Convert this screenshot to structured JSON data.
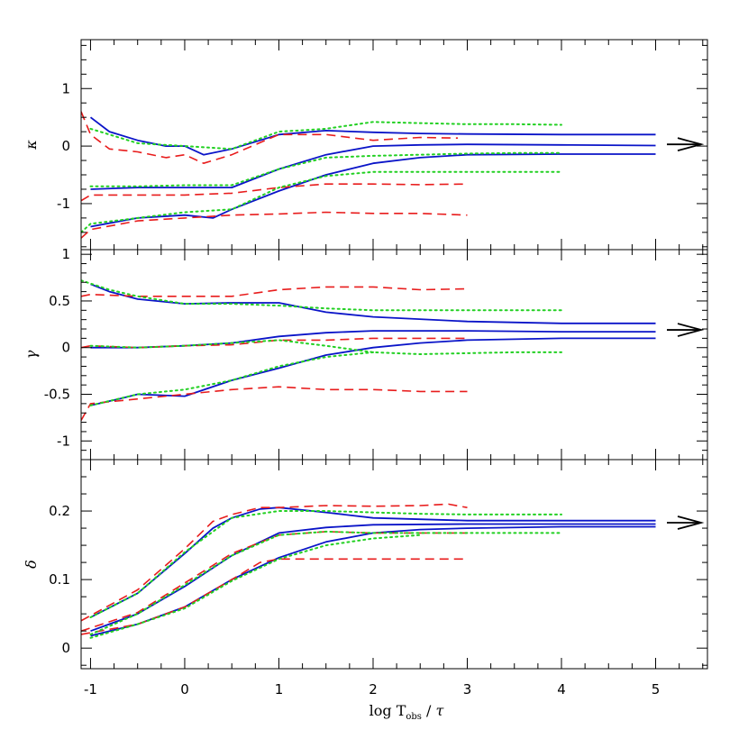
{
  "chart_data": {
    "type": "line",
    "xlabel": "log T_obs / τ",
    "xlabel_parts": {
      "main": "log T",
      "sub": "obs",
      "div": " / ",
      "tau": "τ"
    },
    "xlim": [
      -1.1,
      5.55
    ],
    "xticks": [
      -1,
      0,
      1,
      2,
      3,
      4,
      5
    ],
    "xtick_labels": [
      "-1",
      "0",
      "1",
      "2",
      "3",
      "4",
      "5"
    ],
    "line_colors": {
      "solid": "#0a14c8",
      "dashed": "#e81c1c",
      "dotted": "#22d022",
      "arrow": "#000000",
      "axes": "#000000"
    },
    "panels": [
      {
        "ylabel": "κ",
        "ylim": [
          -1.8,
          1.85
        ],
        "yticks": [
          -1,
          0,
          1
        ],
        "ytick_labels": [
          "-1",
          "0",
          "1"
        ],
        "minor_step": 0.25,
        "arrow_y": 0.03,
        "series": [
          {
            "style": "solid",
            "x": [
              -1.0,
              -0.8,
              -0.5,
              -0.2,
              0.0,
              0.2,
              0.5,
              1.0,
              1.5,
              2.0,
              2.5,
              3.0,
              4.0,
              5.0
            ],
            "y": [
              0.5,
              0.25,
              0.1,
              0.0,
              0.0,
              -0.15,
              -0.05,
              0.2,
              0.27,
              0.24,
              0.22,
              0.21,
              0.2,
              0.2
            ]
          },
          {
            "style": "solid",
            "x": [
              -1.0,
              -0.5,
              0.0,
              0.5,
              1.0,
              1.5,
              2.0,
              2.5,
              3.0,
              4.0,
              5.0
            ],
            "y": [
              -0.75,
              -0.72,
              -0.72,
              -0.72,
              -0.4,
              -0.15,
              0.0,
              0.02,
              0.03,
              0.02,
              0.01
            ]
          },
          {
            "style": "solid",
            "x": [
              -1.0,
              -0.5,
              0.0,
              0.3,
              0.5,
              1.0,
              1.5,
              2.0,
              2.5,
              3.0,
              4.0,
              5.0
            ],
            "y": [
              -1.4,
              -1.25,
              -1.2,
              -1.25,
              -1.1,
              -0.78,
              -0.5,
              -0.3,
              -0.2,
              -0.15,
              -0.14,
              -0.14
            ]
          },
          {
            "style": "dashed",
            "x": [
              -1.1,
              -1.0,
              -0.8,
              -0.5,
              -0.2,
              0.0,
              0.2,
              0.5,
              1.0,
              1.5,
              2.0,
              2.5,
              2.9
            ],
            "y": [
              0.6,
              0.2,
              -0.05,
              -0.1,
              -0.2,
              -0.15,
              -0.3,
              -0.15,
              0.2,
              0.2,
              0.1,
              0.15,
              0.14
            ]
          },
          {
            "style": "dashed",
            "x": [
              -1.1,
              -1.0,
              -0.5,
              0.0,
              0.5,
              1.0,
              1.5,
              2.0,
              2.5,
              3.0
            ],
            "y": [
              -0.95,
              -0.85,
              -0.85,
              -0.85,
              -0.82,
              -0.72,
              -0.66,
              -0.66,
              -0.67,
              -0.66
            ]
          },
          {
            "style": "dashed",
            "x": [
              -1.1,
              -1.0,
              -0.5,
              0.0,
              0.5,
              1.0,
              1.5,
              2.0,
              2.5,
              3.0
            ],
            "y": [
              -1.6,
              -1.45,
              -1.3,
              -1.25,
              -1.2,
              -1.18,
              -1.15,
              -1.17,
              -1.17,
              -1.2
            ]
          },
          {
            "style": "dotted",
            "x": [
              -1.0,
              -0.5,
              0.0,
              0.5,
              1.0,
              1.5,
              2.0,
              2.5,
              3.0,
              3.5,
              4.0
            ],
            "y": [
              0.3,
              0.05,
              0.0,
              -0.05,
              0.25,
              0.3,
              0.42,
              0.4,
              0.38,
              0.38,
              0.37
            ]
          },
          {
            "style": "dotted",
            "x": [
              -1.0,
              -0.5,
              0.0,
              0.5,
              1.0,
              1.5,
              2.0,
              2.5,
              3.0,
              3.5,
              4.0
            ],
            "y": [
              -0.7,
              -0.7,
              -0.68,
              -0.68,
              -0.4,
              -0.2,
              -0.17,
              -0.15,
              -0.13,
              -0.12,
              -0.12
            ]
          },
          {
            "style": "dotted",
            "x": [
              -1.1,
              -1.0,
              -0.5,
              0.0,
              0.5,
              1.0,
              1.5,
              2.0,
              2.5,
              3.0,
              3.5,
              4.0
            ],
            "y": [
              -1.5,
              -1.35,
              -1.25,
              -1.15,
              -1.1,
              -0.72,
              -0.52,
              -0.45,
              -0.45,
              -0.45,
              -0.45,
              -0.45
            ]
          }
        ]
      },
      {
        "ylabel": "γ",
        "ylim": [
          -1.2,
          1.05
        ],
        "yticks": [
          -1,
          -0.5,
          0,
          0.5,
          1
        ],
        "ytick_labels": [
          "-1",
          "-0.5",
          "0",
          "0.5",
          "1"
        ],
        "minor_step": 0.1,
        "arrow_y": 0.19,
        "series": [
          {
            "style": "solid",
            "x": [
              -1.0,
              -0.8,
              -0.5,
              0.0,
              0.5,
              1.0,
              1.5,
              2.0,
              3.0,
              4.0,
              5.0
            ],
            "y": [
              0.68,
              0.6,
              0.52,
              0.47,
              0.48,
              0.48,
              0.38,
              0.33,
              0.28,
              0.26,
              0.26
            ]
          },
          {
            "style": "solid",
            "x": [
              -1.0,
              -0.5,
              0.0,
              0.5,
              1.0,
              1.5,
              2.0,
              2.5,
              3.0,
              4.0,
              5.0
            ],
            "y": [
              0.0,
              0.0,
              0.02,
              0.05,
              0.12,
              0.16,
              0.18,
              0.18,
              0.18,
              0.17,
              0.17
            ]
          },
          {
            "style": "solid",
            "x": [
              -1.0,
              -0.7,
              -0.5,
              0.0,
              0.5,
              1.0,
              1.5,
              2.0,
              2.5,
              3.0,
              4.0,
              5.0
            ],
            "y": [
              -0.62,
              -0.55,
              -0.5,
              -0.52,
              -0.35,
              -0.22,
              -0.08,
              0.0,
              0.05,
              0.08,
              0.1,
              0.1
            ]
          },
          {
            "style": "dashed",
            "x": [
              -1.1,
              -1.0,
              -0.5,
              0.0,
              0.5,
              1.0,
              1.5,
              2.0,
              2.5,
              3.0
            ],
            "y": [
              0.55,
              0.57,
              0.55,
              0.55,
              0.55,
              0.62,
              0.65,
              0.65,
              0.62,
              0.63
            ]
          },
          {
            "style": "dashed",
            "x": [
              -1.1,
              -1.0,
              -0.5,
              0.0,
              0.5,
              1.0,
              1.5,
              2.0,
              2.5,
              3.0
            ],
            "y": [
              0.0,
              0.02,
              0.0,
              0.02,
              0.03,
              0.08,
              0.08,
              0.1,
              0.1,
              0.1
            ]
          },
          {
            "style": "dashed",
            "x": [
              -1.1,
              -1.0,
              -0.5,
              0.0,
              0.5,
              1.0,
              1.5,
              2.0,
              2.5,
              3.0
            ],
            "y": [
              -0.78,
              -0.6,
              -0.55,
              -0.5,
              -0.45,
              -0.42,
              -0.45,
              -0.45,
              -0.47,
              -0.47
            ]
          },
          {
            "style": "dotted",
            "x": [
              -1.1,
              -0.8,
              -0.5,
              0.0,
              0.5,
              1.0,
              1.5,
              2.0,
              2.5,
              3.0,
              3.5,
              4.0
            ],
            "y": [
              0.72,
              0.62,
              0.55,
              0.47,
              0.47,
              0.45,
              0.42,
              0.4,
              0.4,
              0.4,
              0.4,
              0.4
            ]
          },
          {
            "style": "dotted",
            "x": [
              -1.0,
              -0.5,
              0.0,
              0.5,
              1.0,
              1.5,
              2.0,
              2.5,
              3.0,
              3.5,
              4.0
            ],
            "y": [
              0.02,
              0.0,
              0.02,
              0.05,
              0.08,
              0.02,
              -0.05,
              -0.07,
              -0.06,
              -0.05,
              -0.05
            ]
          },
          {
            "style": "dotted",
            "x": [
              -1.0,
              -0.5,
              0.0,
              0.5,
              1.0,
              1.5,
              2.0
            ],
            "y": [
              -0.62,
              -0.5,
              -0.45,
              -0.35,
              -0.2,
              -0.1,
              -0.05
            ]
          }
        ]
      },
      {
        "ylabel": "δ",
        "ylim": [
          -0.03,
          0.275
        ],
        "yticks": [
          0,
          0.1,
          0.2
        ],
        "ytick_labels": [
          "0",
          "0.1",
          "0.2"
        ],
        "minor_step": 0.025,
        "arrow_y": 0.183,
        "series": [
          {
            "style": "solid",
            "x": [
              -1.0,
              -0.5,
              0.0,
              0.3,
              0.5,
              0.8,
              1.0,
              1.5,
              2.0,
              3.0,
              4.0,
              5.0
            ],
            "y": [
              0.045,
              0.08,
              0.138,
              0.175,
              0.19,
              0.203,
              0.205,
              0.198,
              0.19,
              0.186,
              0.186,
              0.186
            ]
          },
          {
            "style": "solid",
            "x": [
              -1.0,
              -0.5,
              0.0,
              0.5,
              1.0,
              1.5,
              2.0,
              3.0,
              4.0,
              5.0
            ],
            "y": [
              0.025,
              0.05,
              0.09,
              0.135,
              0.168,
              0.176,
              0.18,
              0.181,
              0.181,
              0.181
            ]
          },
          {
            "style": "solid",
            "x": [
              -1.0,
              -0.5,
              0.0,
              0.5,
              1.0,
              1.5,
              2.0,
              2.5,
              3.0,
              4.0,
              5.0
            ],
            "y": [
              0.018,
              0.035,
              0.06,
              0.1,
              0.132,
              0.155,
              0.168,
              0.173,
              0.175,
              0.177,
              0.177
            ]
          },
          {
            "style": "dashed",
            "x": [
              -1.1,
              -0.5,
              0.0,
              0.3,
              0.5,
              0.8,
              1.0,
              1.5,
              2.0,
              2.5,
              2.8,
              3.0
            ],
            "y": [
              0.04,
              0.085,
              0.145,
              0.185,
              0.195,
              0.205,
              0.205,
              0.208,
              0.207,
              0.208,
              0.21,
              0.205
            ]
          },
          {
            "style": "dashed",
            "x": [
              -1.1,
              -0.5,
              0.0,
              0.5,
              1.0,
              1.5,
              2.0,
              2.5,
              3.0
            ],
            "y": [
              0.025,
              0.052,
              0.095,
              0.138,
              0.165,
              0.17,
              0.168,
              0.168,
              0.168
            ]
          },
          {
            "style": "dashed",
            "x": [
              -1.1,
              -0.5,
              0.0,
              0.5,
              0.8,
              1.0,
              1.5,
              2.0,
              2.5,
              3.0
            ],
            "y": [
              0.02,
              0.035,
              0.06,
              0.1,
              0.125,
              0.13,
              0.13,
              0.13,
              0.13,
              0.13
            ]
          },
          {
            "style": "dotted",
            "x": [
              -1.0,
              -0.5,
              0.0,
              0.5,
              1.0,
              1.5,
              2.0,
              2.5,
              3.0,
              3.5,
              4.0
            ],
            "y": [
              0.045,
              0.08,
              0.14,
              0.19,
              0.2,
              0.2,
              0.198,
              0.196,
              0.195,
              0.195,
              0.195
            ]
          },
          {
            "style": "dotted",
            "x": [
              -1.0,
              -0.5,
              0.0,
              0.5,
              1.0,
              1.5,
              2.0,
              2.5,
              3.0,
              3.5,
              4.0
            ],
            "y": [
              0.02,
              0.05,
              0.092,
              0.135,
              0.165,
              0.17,
              0.168,
              0.168,
              0.168,
              0.168,
              0.168
            ]
          },
          {
            "style": "dotted",
            "x": [
              -1.0,
              -0.5,
              0.0,
              0.5,
              1.0,
              1.5,
              2.0,
              2.5
            ],
            "y": [
              0.015,
              0.035,
              0.058,
              0.098,
              0.13,
              0.15,
              0.16,
              0.165
            ]
          }
        ]
      }
    ]
  }
}
